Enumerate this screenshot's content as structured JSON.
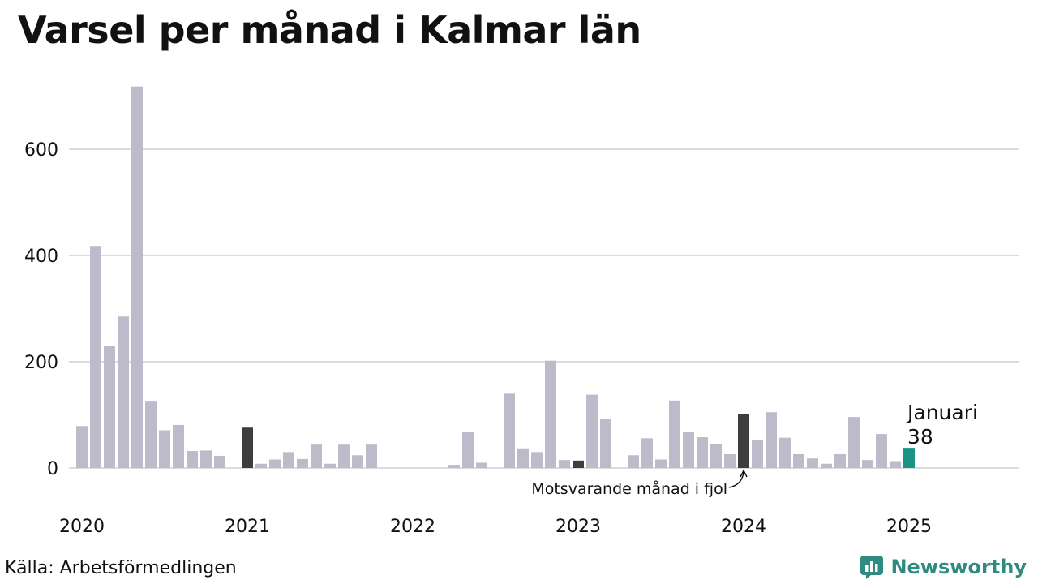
{
  "title": "Varsel per månad i Kalmar län",
  "source": "Källa: Arbetsförmedlingen",
  "brand": "Newsworthy",
  "chart_data": {
    "type": "bar",
    "ylim": [
      0,
      720
    ],
    "yticks": [
      0,
      200,
      400,
      600
    ],
    "xticks": [
      "2020",
      "2021",
      "2022",
      "2023",
      "2024",
      "2025"
    ],
    "grid": true,
    "colors": {
      "default": "#bdbbc9",
      "comparison": "#3d3d3d",
      "current": "#1a9485",
      "grid": "#dcdcdc"
    },
    "annotations": {
      "current_month": "Januari",
      "current_value": "38",
      "comparison_note": "Motsvarande månad i fjol"
    },
    "months": [
      "2020-01",
      "2020-02",
      "2020-03",
      "2020-04",
      "2020-05",
      "2020-06",
      "2020-07",
      "2020-08",
      "2020-09",
      "2020-10",
      "2020-11",
      "2020-12",
      "2021-01",
      "2021-02",
      "2021-03",
      "2021-04",
      "2021-05",
      "2021-06",
      "2021-07",
      "2021-08",
      "2021-09",
      "2021-10",
      "2021-11",
      "2021-12",
      "2022-01",
      "2022-02",
      "2022-03",
      "2022-04",
      "2022-05",
      "2022-06",
      "2022-07",
      "2022-08",
      "2022-09",
      "2022-10",
      "2022-11",
      "2022-12",
      "2023-01",
      "2023-02",
      "2023-03",
      "2023-04",
      "2023-05",
      "2023-06",
      "2023-07",
      "2023-08",
      "2023-09",
      "2023-10",
      "2023-11",
      "2023-12",
      "2024-01",
      "2024-02",
      "2024-03",
      "2024-04",
      "2024-05",
      "2024-06",
      "2024-07",
      "2024-08",
      "2024-09",
      "2024-10",
      "2024-11",
      "2024-12",
      "2025-01"
    ],
    "values": [
      79,
      418,
      230,
      285,
      718,
      125,
      71,
      81,
      32,
      33,
      23,
      0,
      76,
      8,
      16,
      30,
      17,
      44,
      8,
      44,
      24,
      44,
      0,
      0,
      0,
      0,
      0,
      6,
      68,
      10,
      0,
      140,
      37,
      30,
      202,
      15,
      14,
      138,
      92,
      0,
      24,
      56,
      16,
      127,
      68,
      58,
      45,
      26,
      102,
      53,
      105,
      57,
      26,
      18,
      8,
      26,
      96,
      15,
      64,
      13,
      38
    ],
    "highlight": {
      "12": "comparison",
      "36": "comparison",
      "48": "comparison",
      "60": "current"
    }
  }
}
